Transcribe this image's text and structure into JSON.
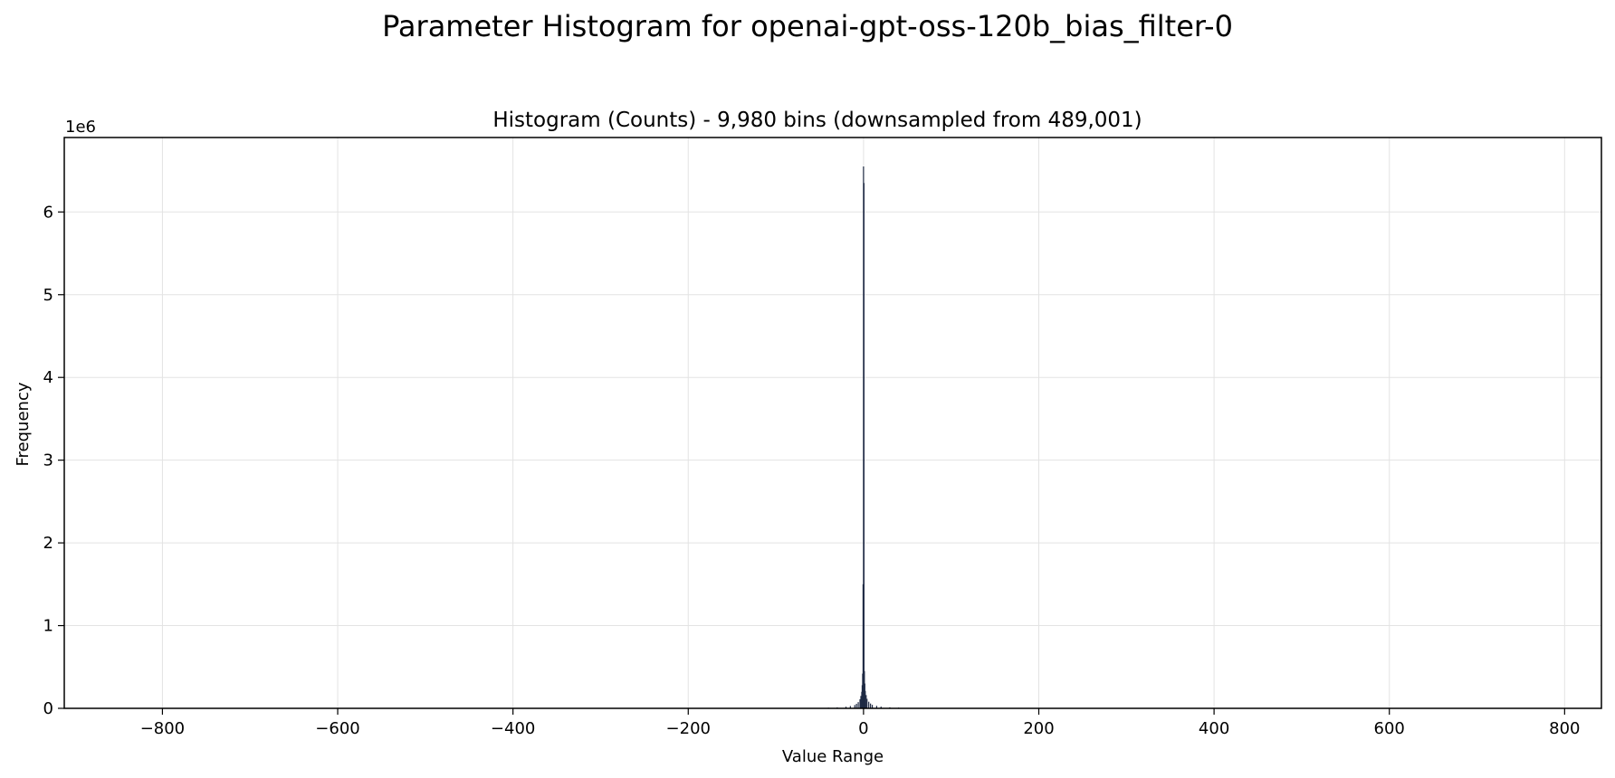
{
  "figure": {
    "suptitle": "Parameter Histogram for openai-gpt-oss-120b_bias_filter-0"
  },
  "chart_data": {
    "type": "bar",
    "title": "Histogram (Counts) - 9,980 bins (downsampled from 489,001)",
    "xlabel": "Value Range",
    "ylabel": "Frequency",
    "y_offset_label": "1e6",
    "xlim": [
      -912,
      842
    ],
    "ylim": [
      0,
      6900000
    ],
    "xticks": [
      -800,
      -600,
      -400,
      -200,
      0,
      200,
      400,
      600,
      800
    ],
    "xtick_labels": [
      "−800",
      "−600",
      "−400",
      "−200",
      "0",
      "200",
      "400",
      "600",
      "800"
    ],
    "yticks": [
      0,
      1000000,
      2000000,
      3000000,
      4000000,
      5000000,
      6000000
    ],
    "ytick_labels": [
      "0",
      "1",
      "2",
      "3",
      "4",
      "5",
      "6"
    ],
    "grid": true,
    "bar_color": "#1f2a44",
    "bins": {
      "x": [
        -40,
        -30,
        -20,
        -15,
        -10,
        -8,
        -6,
        -4,
        -3,
        -2,
        -1.5,
        -1,
        -0.5,
        0,
        0.5,
        1,
        1.5,
        2,
        3,
        4,
        6,
        8,
        10,
        15,
        20,
        30,
        40
      ],
      "values": [
        8000,
        12000,
        20000,
        28000,
        40000,
        55000,
        75000,
        110000,
        150000,
        200000,
        280000,
        420000,
        1500000,
        6550000,
        6350000,
        450000,
        300000,
        210000,
        160000,
        115000,
        80000,
        58000,
        42000,
        30000,
        21000,
        13000,
        9000
      ]
    }
  }
}
